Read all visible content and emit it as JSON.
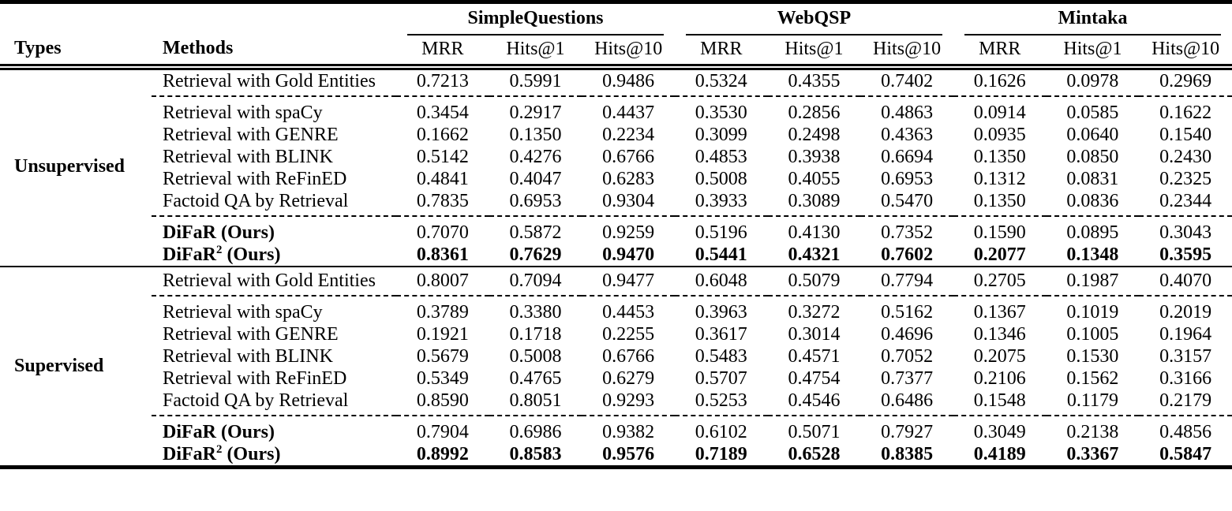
{
  "table": {
    "corner": {
      "types_label": "Types",
      "methods_label": "Methods"
    },
    "groups": [
      {
        "label": "SimpleQuestions"
      },
      {
        "label": "WebQSP"
      },
      {
        "label": "Mintaka"
      }
    ],
    "metrics": [
      "MRR",
      "Hits@1",
      "Hits@10"
    ],
    "sections": [
      {
        "type_label": "Unsupervised",
        "subgroups": [
          [
            {
              "method": "Retrieval with Gold Entities",
              "bold_method": false,
              "bold_values": false,
              "values": [
                "0.7213",
                "0.5991",
                "0.9486",
                "0.5324",
                "0.4355",
                "0.7402",
                "0.1626",
                "0.0978",
                "0.2969"
              ]
            }
          ],
          [
            {
              "method": "Retrieval with spaCy",
              "bold_method": false,
              "bold_values": false,
              "values": [
                "0.3454",
                "0.2917",
                "0.4437",
                "0.3530",
                "0.2856",
                "0.4863",
                "0.0914",
                "0.0585",
                "0.1622"
              ]
            },
            {
              "method": "Retrieval with GENRE",
              "bold_method": false,
              "bold_values": false,
              "values": [
                "0.1662",
                "0.1350",
                "0.2234",
                "0.3099",
                "0.2498",
                "0.4363",
                "0.0935",
                "0.0640",
                "0.1540"
              ]
            },
            {
              "method": "Retrieval with BLINK",
              "bold_method": false,
              "bold_values": false,
              "values": [
                "0.5142",
                "0.4276",
                "0.6766",
                "0.4853",
                "0.3938",
                "0.6694",
                "0.1350",
                "0.0850",
                "0.2430"
              ]
            },
            {
              "method": "Retrieval with ReFinED",
              "bold_method": false,
              "bold_values": false,
              "values": [
                "0.4841",
                "0.4047",
                "0.6283",
                "0.5008",
                "0.4055",
                "0.6953",
                "0.1312",
                "0.0831",
                "0.2325"
              ]
            },
            {
              "method": "Factoid QA by Retrieval",
              "bold_method": false,
              "bold_values": false,
              "values": [
                "0.7835",
                "0.6953",
                "0.9304",
                "0.3933",
                "0.3089",
                "0.5470",
                "0.1350",
                "0.0836",
                "0.2344"
              ]
            }
          ],
          [
            {
              "method": "DiFaR (Ours)",
              "bold_method": true,
              "bold_values": false,
              "values": [
                "0.7070",
                "0.5872",
                "0.9259",
                "0.5196",
                "0.4130",
                "0.7352",
                "0.1590",
                "0.0895",
                "0.3043"
              ]
            },
            {
              "method": "DiFaR^2 (Ours)",
              "bold_method": true,
              "bold_values": true,
              "values": [
                "0.8361",
                "0.7629",
                "0.9470",
                "0.5441",
                "0.4321",
                "0.7602",
                "0.2077",
                "0.1348",
                "0.3595"
              ]
            }
          ]
        ]
      },
      {
        "type_label": "Supervised",
        "subgroups": [
          [
            {
              "method": "Retrieval with Gold Entities",
              "bold_method": false,
              "bold_values": false,
              "values": [
                "0.8007",
                "0.7094",
                "0.9477",
                "0.6048",
                "0.5079",
                "0.7794",
                "0.2705",
                "0.1987",
                "0.4070"
              ]
            }
          ],
          [
            {
              "method": "Retrieval with spaCy",
              "bold_method": false,
              "bold_values": false,
              "values": [
                "0.3789",
                "0.3380",
                "0.4453",
                "0.3963",
                "0.3272",
                "0.5162",
                "0.1367",
                "0.1019",
                "0.2019"
              ]
            },
            {
              "method": "Retrieval with GENRE",
              "bold_method": false,
              "bold_values": false,
              "values": [
                "0.1921",
                "0.1718",
                "0.2255",
                "0.3617",
                "0.3014",
                "0.4696",
                "0.1346",
                "0.1005",
                "0.1964"
              ]
            },
            {
              "method": "Retrieval with BLINK",
              "bold_method": false,
              "bold_values": false,
              "values": [
                "0.5679",
                "0.5008",
                "0.6766",
                "0.5483",
                "0.4571",
                "0.7052",
                "0.2075",
                "0.1530",
                "0.3157"
              ]
            },
            {
              "method": "Retrieval with ReFinED",
              "bold_method": false,
              "bold_values": false,
              "values": [
                "0.5349",
                "0.4765",
                "0.6279",
                "0.5707",
                "0.4754",
                "0.7377",
                "0.2106",
                "0.1562",
                "0.3166"
              ]
            },
            {
              "method": "Factoid QA by Retrieval",
              "bold_method": false,
              "bold_values": false,
              "values": [
                "0.8590",
                "0.8051",
                "0.9293",
                "0.5253",
                "0.4546",
                "0.6486",
                "0.1548",
                "0.1179",
                "0.2179"
              ]
            }
          ],
          [
            {
              "method": "DiFaR (Ours)",
              "bold_method": true,
              "bold_values": false,
              "values": [
                "0.7904",
                "0.6986",
                "0.9382",
                "0.6102",
                "0.5071",
                "0.7927",
                "0.3049",
                "0.2138",
                "0.4856"
              ]
            },
            {
              "method": "DiFaR^2 (Ours)",
              "bold_method": true,
              "bold_values": true,
              "values": [
                "0.8992",
                "0.8583",
                "0.9576",
                "0.7189",
                "0.6528",
                "0.8385",
                "0.4189",
                "0.3367",
                "0.5847"
              ]
            }
          ]
        ]
      }
    ]
  }
}
